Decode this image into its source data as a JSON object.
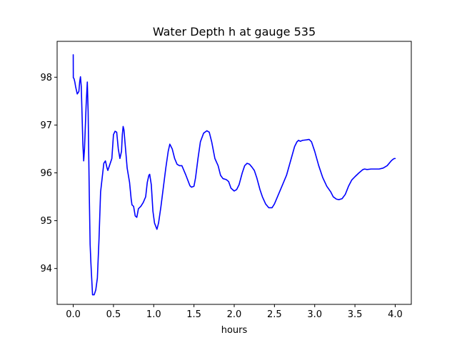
{
  "chart_data": {
    "type": "line",
    "title": "Water Depth h at gauge 535",
    "xlabel": "hours",
    "ylabel": "",
    "xlim": [
      -0.2,
      4.2
    ],
    "ylim": [
      93.25,
      98.75
    ],
    "x_ticks": [
      0.0,
      0.5,
      1.0,
      1.5,
      2.0,
      2.5,
      3.0,
      3.5,
      4.0
    ],
    "x_tick_labels": [
      "0.0",
      "0.5",
      "1.0",
      "1.5",
      "2.0",
      "2.5",
      "3.0",
      "3.5",
      "4.0"
    ],
    "y_ticks": [
      94,
      95,
      96,
      97,
      98
    ],
    "y_tick_labels": [
      "94",
      "95",
      "96",
      "97",
      "98"
    ],
    "grid": false,
    "series": [
      {
        "color": "#0000ff",
        "points": [
          [
            0.0,
            98.47
          ],
          [
            0.001,
            97.99
          ],
          [
            0.01,
            97.97
          ],
          [
            0.02,
            97.9
          ],
          [
            0.03,
            97.8
          ],
          [
            0.05,
            97.65
          ],
          [
            0.07,
            97.7
          ],
          [
            0.08,
            97.9
          ],
          [
            0.09,
            98.01
          ],
          [
            0.1,
            97.8
          ],
          [
            0.11,
            97.2
          ],
          [
            0.12,
            96.6
          ],
          [
            0.13,
            96.25
          ],
          [
            0.14,
            96.5
          ],
          [
            0.16,
            97.4
          ],
          [
            0.175,
            97.9
          ],
          [
            0.185,
            97.3
          ],
          [
            0.2,
            95.5
          ],
          [
            0.21,
            94.5
          ],
          [
            0.22,
            94.1
          ],
          [
            0.24,
            93.45
          ],
          [
            0.26,
            93.45
          ],
          [
            0.28,
            93.55
          ],
          [
            0.3,
            93.8
          ],
          [
            0.32,
            94.6
          ],
          [
            0.34,
            95.6
          ],
          [
            0.36,
            95.9
          ],
          [
            0.38,
            96.2
          ],
          [
            0.4,
            96.25
          ],
          [
            0.42,
            96.1
          ],
          [
            0.43,
            96.05
          ],
          [
            0.45,
            96.15
          ],
          [
            0.48,
            96.3
          ],
          [
            0.5,
            96.8
          ],
          [
            0.52,
            96.87
          ],
          [
            0.54,
            96.85
          ],
          [
            0.56,
            96.5
          ],
          [
            0.58,
            96.3
          ],
          [
            0.6,
            96.45
          ],
          [
            0.61,
            96.8
          ],
          [
            0.62,
            96.97
          ],
          [
            0.63,
            96.9
          ],
          [
            0.65,
            96.5
          ],
          [
            0.67,
            96.1
          ],
          [
            0.7,
            95.8
          ],
          [
            0.72,
            95.45
          ],
          [
            0.73,
            95.33
          ],
          [
            0.75,
            95.3
          ],
          [
            0.77,
            95.1
          ],
          [
            0.79,
            95.07
          ],
          [
            0.81,
            95.25
          ],
          [
            0.84,
            95.3
          ],
          [
            0.87,
            95.38
          ],
          [
            0.9,
            95.5
          ],
          [
            0.92,
            95.8
          ],
          [
            0.94,
            95.95
          ],
          [
            0.95,
            95.97
          ],
          [
            0.97,
            95.75
          ],
          [
            0.99,
            95.2
          ],
          [
            1.01,
            94.95
          ],
          [
            1.04,
            94.82
          ],
          [
            1.06,
            94.95
          ],
          [
            1.09,
            95.3
          ],
          [
            1.12,
            95.7
          ],
          [
            1.15,
            96.1
          ],
          [
            1.18,
            96.45
          ],
          [
            1.2,
            96.6
          ],
          [
            1.23,
            96.5
          ],
          [
            1.26,
            96.3
          ],
          [
            1.29,
            96.18
          ],
          [
            1.32,
            96.15
          ],
          [
            1.35,
            96.15
          ],
          [
            1.4,
            95.95
          ],
          [
            1.45,
            95.73
          ],
          [
            1.47,
            95.7
          ],
          [
            1.5,
            95.72
          ],
          [
            1.52,
            95.9
          ],
          [
            1.55,
            96.3
          ],
          [
            1.58,
            96.65
          ],
          [
            1.62,
            96.83
          ],
          [
            1.66,
            96.88
          ],
          [
            1.69,
            96.85
          ],
          [
            1.72,
            96.65
          ],
          [
            1.76,
            96.3
          ],
          [
            1.8,
            96.15
          ],
          [
            1.83,
            95.95
          ],
          [
            1.86,
            95.88
          ],
          [
            1.9,
            95.86
          ],
          [
            1.93,
            95.82
          ],
          [
            1.96,
            95.68
          ],
          [
            2.0,
            95.62
          ],
          [
            2.03,
            95.65
          ],
          [
            2.06,
            95.75
          ],
          [
            2.1,
            96.0
          ],
          [
            2.13,
            96.15
          ],
          [
            2.16,
            96.2
          ],
          [
            2.19,
            96.18
          ],
          [
            2.22,
            96.12
          ],
          [
            2.25,
            96.05
          ],
          [
            2.28,
            95.9
          ],
          [
            2.32,
            95.65
          ],
          [
            2.35,
            95.5
          ],
          [
            2.39,
            95.35
          ],
          [
            2.43,
            95.27
          ],
          [
            2.47,
            95.27
          ],
          [
            2.5,
            95.35
          ],
          [
            2.55,
            95.55
          ],
          [
            2.6,
            95.75
          ],
          [
            2.65,
            95.95
          ],
          [
            2.7,
            96.25
          ],
          [
            2.75,
            96.55
          ],
          [
            2.78,
            96.65
          ],
          [
            2.8,
            96.68
          ],
          [
            2.82,
            96.66
          ],
          [
            2.85,
            96.68
          ],
          [
            2.9,
            96.69
          ],
          [
            2.93,
            96.7
          ],
          [
            2.96,
            96.65
          ],
          [
            3.0,
            96.45
          ],
          [
            3.05,
            96.15
          ],
          [
            3.1,
            95.9
          ],
          [
            3.15,
            95.72
          ],
          [
            3.2,
            95.6
          ],
          [
            3.23,
            95.5
          ],
          [
            3.27,
            95.45
          ],
          [
            3.3,
            95.44
          ],
          [
            3.34,
            95.46
          ],
          [
            3.38,
            95.55
          ],
          [
            3.42,
            95.72
          ],
          [
            3.46,
            95.85
          ],
          [
            3.5,
            95.92
          ],
          [
            3.55,
            96.0
          ],
          [
            3.6,
            96.07
          ],
          [
            3.62,
            96.08
          ],
          [
            3.65,
            96.07
          ],
          [
            3.7,
            96.08
          ],
          [
            3.8,
            96.08
          ],
          [
            3.85,
            96.1
          ],
          [
            3.9,
            96.15
          ],
          [
            3.95,
            96.25
          ],
          [
            3.97,
            96.28
          ],
          [
            3.99,
            96.3
          ],
          [
            4.0,
            96.3
          ]
        ]
      }
    ]
  }
}
